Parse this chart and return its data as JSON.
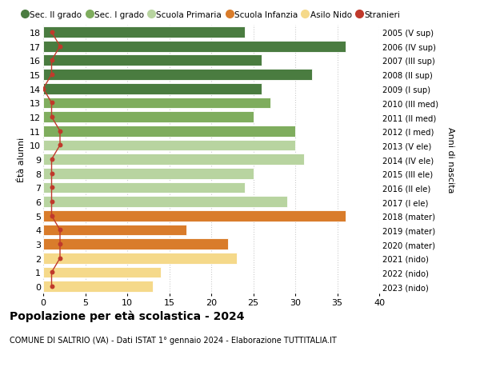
{
  "ages": [
    18,
    17,
    16,
    15,
    14,
    13,
    12,
    11,
    10,
    9,
    8,
    7,
    6,
    5,
    4,
    3,
    2,
    1,
    0
  ],
  "right_labels": [
    "2005 (V sup)",
    "2006 (IV sup)",
    "2007 (III sup)",
    "2008 (II sup)",
    "2009 (I sup)",
    "2010 (III med)",
    "2011 (II med)",
    "2012 (I med)",
    "2013 (V ele)",
    "2014 (IV ele)",
    "2015 (III ele)",
    "2016 (II ele)",
    "2017 (I ele)",
    "2018 (mater)",
    "2019 (mater)",
    "2020 (mater)",
    "2021 (nido)",
    "2022 (nido)",
    "2023 (nido)"
  ],
  "bar_values": [
    24,
    36,
    26,
    32,
    26,
    27,
    25,
    30,
    30,
    31,
    25,
    24,
    29,
    36,
    17,
    22,
    23,
    14,
    13
  ],
  "stranieri_values": [
    1,
    2,
    1,
    1,
    0,
    1,
    1,
    2,
    2,
    1,
    1,
    1,
    1,
    1,
    2,
    2,
    2,
    1,
    1
  ],
  "bar_colors": [
    "#4a7c40",
    "#4a7c40",
    "#4a7c40",
    "#4a7c40",
    "#4a7c40",
    "#7fad5e",
    "#7fad5e",
    "#7fad5e",
    "#b8d4a0",
    "#b8d4a0",
    "#b8d4a0",
    "#b8d4a0",
    "#b8d4a0",
    "#d97c2b",
    "#d97c2b",
    "#d97c2b",
    "#f5d98a",
    "#f5d98a",
    "#f5d98a"
  ],
  "legend_labels": [
    "Sec. II grado",
    "Sec. I grado",
    "Scuola Primaria",
    "Scuola Infanzia",
    "Asilo Nido",
    "Stranieri"
  ],
  "legend_colors": [
    "#4a7c40",
    "#7fad5e",
    "#b8d4a0",
    "#d97c2b",
    "#f5d98a",
    "#c0392b"
  ],
  "stranieri_color": "#c0392b",
  "xlim": [
    0,
    40
  ],
  "xticks": [
    0,
    5,
    10,
    15,
    20,
    25,
    30,
    35,
    40
  ],
  "ylabel_left": "Étà alunni",
  "ylabel_right": "Anni di nascita",
  "title_bold": "Popolazione per età scolastica - 2024",
  "subtitle": "COMUNE DI SALTRIO (VA) - Dati ISTAT 1° gennaio 2024 - Elaborazione TUTTITALIA.IT",
  "background_color": "#ffffff",
  "grid_color": "#cccccc"
}
